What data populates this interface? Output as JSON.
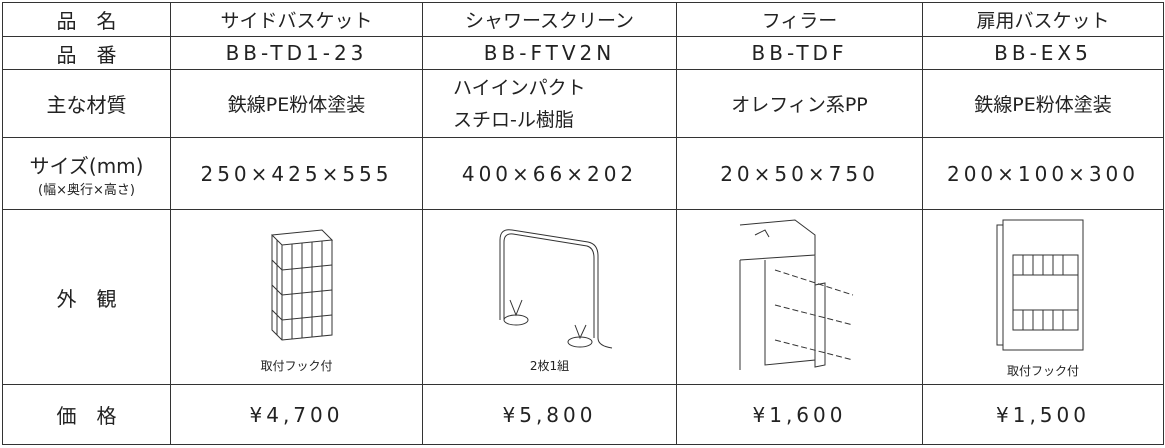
{
  "table": {
    "name_row": {
      "label": "品　名",
      "cells": [
        "サイドバスケット",
        "シャワースクリーン",
        "フィラー",
        "扉用バスケット"
      ]
    },
    "number_row": {
      "label": "品　番",
      "cells": [
        "BB-TD1-23",
        "BB-FTV2N",
        "BB-TDF",
        "BB-EX5"
      ]
    },
    "material_row": {
      "label": "主な材質",
      "cells": [
        [
          "鉄線PE粉体塗装"
        ],
        [
          "ハイインパクト",
          "スチロ-ル樹脂"
        ],
        [
          "オレフィン系PP"
        ],
        [
          "鉄線PE粉体塗装"
        ]
      ]
    },
    "size_row": {
      "label": "サイズ(mm)",
      "sublabel": "(幅×奥行×高さ)",
      "cells": [
        "250×425×555",
        "400×66×202",
        "20×50×750",
        "200×100×300"
      ]
    },
    "appearance_row": {
      "label": "外　観",
      "items": [
        {
          "caption": "取付フック付"
        },
        {
          "caption": "2枚1組"
        },
        {},
        {
          "caption": "取付フック付"
        }
      ]
    },
    "price_row": {
      "label": "価　格",
      "cells": [
        "¥4,700",
        "¥5,800",
        "¥1,600",
        "¥1,500"
      ]
    }
  }
}
